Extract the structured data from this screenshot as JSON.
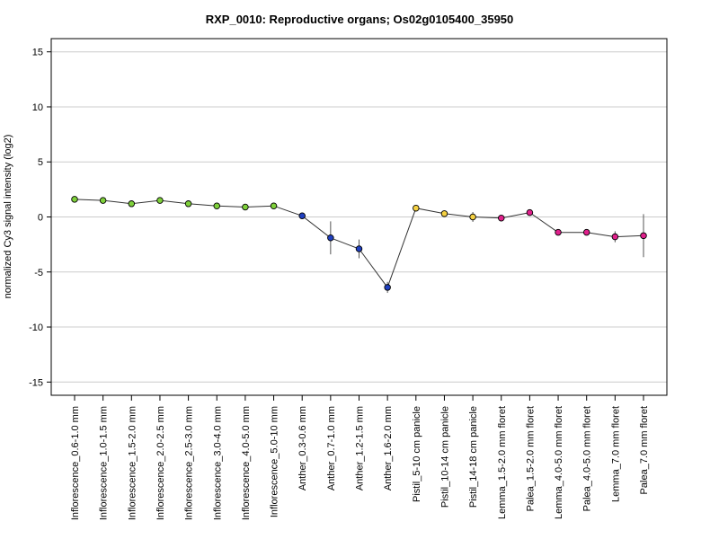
{
  "chart_data": {
    "type": "line",
    "title": "RXP_0010: Reproductive organs; Os02g0105400_35950",
    "xlabel": "",
    "ylabel": "normalized Cy3 signal intensity (log2)",
    "ylim": [
      -16.2,
      16.2
    ],
    "yticks": [
      -15,
      -10,
      -5,
      0,
      5,
      10,
      15
    ],
    "grid": true,
    "categories": [
      "Inflorescence_0.6-1.0 mm",
      "Inflorescence_1.0-1.5 mm",
      "Inflorescence_1.5-2.0 mm",
      "Inflorescence_2.0-2.5 mm",
      "Inflorescence_2.5-3.0 mm",
      "Inflorescence_3.0-4.0 mm",
      "Inflorescence_4.0-5.0 mm",
      "Inflorescence_5.0-10 mm",
      "Anther_0.3-0.6 mm",
      "Anther_0.7-1.0 mm",
      "Anther_1.2-1.5 mm",
      "Anther_1.6-2.0 mm",
      "Pistil_5-10 cm panicle",
      "Pistil_10-14 cm panicle",
      "Pistil_14-18 cm panicle",
      "Lemma_1.5-2.0 mm floret",
      "Palea_1.5-2.0 mm floret",
      "Lemma_4.0-5.0 mm floret",
      "Palea_4.0-5.0 mm floret",
      "Lemma_7.0 mm floret",
      "Palea_7.0 mm floret"
    ],
    "series": [
      {
        "values": [
          1.6,
          1.5,
          1.2,
          1.5,
          1.2,
          1.0,
          0.9,
          1.0,
          0.1,
          -1.9,
          -2.9,
          -6.4,
          0.8,
          0.3,
          0.0,
          -0.1,
          0.4,
          -1.4,
          -1.4,
          -1.8,
          -1.7
        ],
        "error": [
          0.15,
          0.15,
          0.15,
          0.15,
          0.15,
          0.15,
          0.1,
          0.1,
          0.2,
          1.5,
          0.85,
          0.5,
          0.2,
          0.2,
          0.45,
          0.1,
          0.15,
          0.1,
          0.1,
          0.5,
          1.95
        ],
        "colors": [
          "#7fd13b",
          "#7fd13b",
          "#7fd13b",
          "#7fd13b",
          "#7fd13b",
          "#7fd13b",
          "#7fd13b",
          "#7fd13b",
          "#2040c0",
          "#2040c0",
          "#2040c0",
          "#2040c0",
          "#f5d142",
          "#f5d142",
          "#f5d142",
          "#e0208c",
          "#e0208c",
          "#e0208c",
          "#e0208c",
          "#e0208c",
          "#e0208c"
        ]
      }
    ]
  }
}
